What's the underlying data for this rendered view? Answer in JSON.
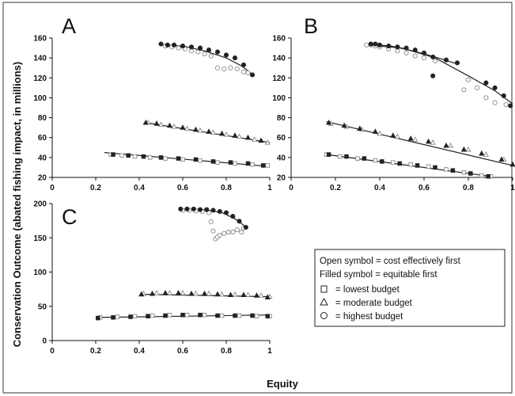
{
  "figure": {
    "ylabel": "Conservation Outcome (abated fishing impact, in millions)",
    "xlabel": "Equity"
  },
  "legend": {
    "line1": "Open symbol = cost effectively first",
    "line2": "Filled symbol = equitable first",
    "items": [
      {
        "symbol": "square",
        "label": "= lowest budget"
      },
      {
        "symbol": "triangle",
        "label": "= moderate budget"
      },
      {
        "symbol": "circle",
        "label": "= highest budget"
      }
    ]
  },
  "chart_data": [
    {
      "panel": "A",
      "type": "scatter",
      "xlim": [
        0,
        1
      ],
      "ylim": [
        20,
        160
      ],
      "xticks": [
        "0",
        "0.2",
        "0.4",
        "0.6",
        "0.8",
        "1"
      ],
      "yticks": [
        "20",
        "40",
        "60",
        "80",
        "100",
        "120",
        "140",
        "160"
      ],
      "series": [
        {
          "marker": "square",
          "fill": "open",
          "x": [
            0.27,
            0.32,
            0.38,
            0.45,
            0.52,
            0.6,
            0.68,
            0.76,
            0.84,
            0.92,
            0.99
          ],
          "y": [
            43,
            42,
            41,
            40,
            39,
            38,
            37,
            35,
            34,
            33,
            32
          ]
        },
        {
          "marker": "square",
          "fill": "filled",
          "x": [
            0.28,
            0.35,
            0.42,
            0.5,
            0.58,
            0.66,
            0.74,
            0.82,
            0.9,
            0.97
          ],
          "y": [
            43,
            42,
            41,
            40,
            39,
            38,
            36,
            35,
            34,
            32
          ]
        },
        {
          "marker": "triangle",
          "fill": "open",
          "x": [
            0.44,
            0.5,
            0.56,
            0.62,
            0.68,
            0.74,
            0.8,
            0.86,
            0.93,
            0.99
          ],
          "y": [
            75,
            73,
            71,
            69,
            67,
            65,
            63,
            61,
            58,
            55
          ]
        },
        {
          "marker": "triangle",
          "fill": "filled",
          "x": [
            0.43,
            0.48,
            0.54,
            0.6,
            0.66,
            0.72,
            0.78,
            0.84,
            0.9,
            0.96
          ],
          "y": [
            75,
            74,
            72,
            70,
            68,
            66,
            64,
            62,
            60,
            57
          ]
        },
        {
          "marker": "circle",
          "fill": "open",
          "x": [
            0.52,
            0.55,
            0.58,
            0.61,
            0.64,
            0.67,
            0.7,
            0.73,
            0.76,
            0.79,
            0.82,
            0.85,
            0.88,
            0.9
          ],
          "y": [
            152,
            151,
            150,
            149,
            147,
            146,
            144,
            142,
            130,
            129,
            130,
            129,
            126,
            125
          ]
        },
        {
          "marker": "circle",
          "fill": "filled",
          "x": [
            0.5,
            0.53,
            0.56,
            0.6,
            0.64,
            0.68,
            0.72,
            0.76,
            0.8,
            0.84,
            0.88,
            0.92
          ],
          "y": [
            154,
            153,
            153,
            152,
            151,
            150,
            148,
            146,
            143,
            140,
            133,
            123
          ]
        }
      ],
      "trendlines": [
        {
          "x": [
            0.24,
            1.0
          ],
          "y": [
            45,
            31
          ]
        },
        {
          "x": [
            0.43,
            1.0
          ],
          "y": [
            75,
            55
          ]
        },
        {
          "x": [
            0.5,
            0.6,
            0.7,
            0.8,
            0.87,
            0.93
          ],
          "y": [
            153,
            152,
            147,
            140,
            132,
            122
          ]
        }
      ]
    },
    {
      "panel": "B",
      "type": "scatter",
      "xlim": [
        0,
        1
      ],
      "ylim": [
        20,
        160
      ],
      "xticks": [
        "0",
        "0.2",
        "0.4",
        "0.6",
        "0.8",
        "1"
      ],
      "yticks": [
        "20",
        "40",
        "60",
        "80",
        "100",
        "120",
        "140",
        "160"
      ],
      "series": [
        {
          "marker": "square",
          "fill": "open",
          "x": [
            0.16,
            0.22,
            0.3,
            0.38,
            0.46,
            0.54,
            0.62,
            0.7,
            0.78,
            0.86,
            0.9
          ],
          "y": [
            43,
            41,
            39,
            37,
            35,
            33,
            31,
            28,
            25,
            22,
            21
          ]
        },
        {
          "marker": "square",
          "fill": "filled",
          "x": [
            0.17,
            0.25,
            0.33,
            0.41,
            0.49,
            0.57,
            0.65,
            0.73,
            0.81,
            0.89
          ],
          "y": [
            43,
            41,
            39,
            36,
            34,
            32,
            30,
            27,
            24,
            21
          ]
        },
        {
          "marker": "triangle",
          "fill": "open",
          "x": [
            0.18,
            0.25,
            0.32,
            0.4,
            0.48,
            0.56,
            0.64,
            0.72,
            0.8,
            0.88,
            0.96
          ],
          "y": [
            74,
            71,
            68,
            64,
            61,
            58,
            55,
            52,
            48,
            43,
            38
          ]
        },
        {
          "marker": "triangle",
          "fill": "filled",
          "x": [
            0.17,
            0.24,
            0.31,
            0.38,
            0.46,
            0.54,
            0.62,
            0.7,
            0.78,
            0.86,
            0.95,
            1.0
          ],
          "y": [
            75,
            72,
            69,
            66,
            62,
            59,
            56,
            52,
            48,
            44,
            38,
            33
          ]
        },
        {
          "marker": "circle",
          "fill": "open",
          "x": [
            0.34,
            0.36,
            0.38,
            0.4,
            0.44,
            0.48,
            0.52,
            0.56,
            0.6,
            0.65,
            0.78,
            0.8,
            0.84,
            0.88,
            0.92,
            0.97
          ],
          "y": [
            153,
            153,
            152,
            151,
            149,
            147,
            145,
            142,
            140,
            137,
            108,
            118,
            110,
            100,
            95,
            93
          ]
        },
        {
          "marker": "circle",
          "fill": "filled",
          "x": [
            0.36,
            0.38,
            0.4,
            0.44,
            0.48,
            0.52,
            0.56,
            0.6,
            0.64,
            0.7,
            0.75,
            0.64,
            0.88,
            0.92,
            0.96,
            0.99
          ],
          "y": [
            154,
            154,
            153,
            152,
            151,
            150,
            148,
            145,
            141,
            138,
            135,
            122,
            115,
            110,
            102,
            92
          ]
        }
      ],
      "trendlines": [
        {
          "x": [
            0.16,
            0.9
          ],
          "y": [
            43,
            21
          ]
        },
        {
          "x": [
            0.16,
            1.0
          ],
          "y": [
            76,
            32
          ]
        },
        {
          "x": [
            0.34,
            0.45,
            0.55,
            0.65,
            0.75
          ],
          "y": [
            154,
            152,
            147,
            141,
            134
          ]
        },
        {
          "x": [
            0.34,
            0.5,
            0.65,
            0.8,
            0.92,
            1.0
          ],
          "y": [
            153,
            150,
            140,
            122,
            107,
            94
          ]
        }
      ]
    },
    {
      "panel": "C",
      "type": "scatter",
      "xlim": [
        0,
        1
      ],
      "ylim": [
        0,
        225
      ],
      "xticks": [
        "0",
        "0.2",
        "0.4",
        "0.6",
        "0.8",
        "1"
      ],
      "yticks": [
        "0",
        "50",
        "100",
        "150",
        "200"
      ],
      "series": [
        {
          "marker": "square",
          "fill": "open",
          "x": [
            0.22,
            0.3,
            0.38,
            0.46,
            0.54,
            0.62,
            0.7,
            0.78,
            0.86,
            0.94,
            1.0
          ],
          "y": [
            38,
            39,
            40,
            41,
            42,
            42,
            42,
            41,
            41,
            40,
            40
          ]
        },
        {
          "marker": "square",
          "fill": "filled",
          "x": [
            0.21,
            0.28,
            0.36,
            0.44,
            0.52,
            0.6,
            0.68,
            0.76,
            0.84,
            0.92,
            0.99
          ],
          "y": [
            37,
            38,
            39,
            40,
            41,
            42,
            42,
            41,
            41,
            41,
            40
          ]
        },
        {
          "marker": "triangle",
          "fill": "open",
          "x": [
            0.42,
            0.48,
            0.54,
            0.6,
            0.66,
            0.72,
            0.78,
            0.84,
            0.9,
            0.96,
            1.0
          ],
          "y": [
            77,
            78,
            78,
            78,
            77,
            77,
            76,
            76,
            75,
            74,
            72
          ]
        },
        {
          "marker": "triangle",
          "fill": "filled",
          "x": [
            0.41,
            0.46,
            0.52,
            0.58,
            0.64,
            0.7,
            0.76,
            0.82,
            0.88,
            0.94,
            0.99
          ],
          "y": [
            76,
            77,
            78,
            78,
            77,
            77,
            76,
            75,
            75,
            74,
            71
          ]
        },
        {
          "marker": "circle",
          "fill": "open",
          "x": [
            0.6,
            0.63,
            0.66,
            0.69,
            0.72,
            0.73,
            0.74,
            0.75,
            0.76,
            0.77,
            0.79,
            0.81,
            0.83,
            0.85,
            0.87,
            0.88
          ],
          "y": [
            214,
            214,
            213,
            212,
            210,
            195,
            180,
            167,
            170,
            173,
            176,
            178,
            178,
            182,
            178,
            185
          ]
        },
        {
          "marker": "circle",
          "fill": "filled",
          "x": [
            0.59,
            0.62,
            0.65,
            0.68,
            0.71,
            0.74,
            0.77,
            0.8,
            0.83,
            0.86,
            0.89
          ],
          "y": [
            216,
            216,
            216,
            215,
            215,
            214,
            212,
            210,
            204,
            196,
            186
          ]
        }
      ],
      "trendlines": [
        {
          "x": [
            0.21,
            1.0
          ],
          "y": [
            38,
            42
          ]
        },
        {
          "x": [
            0.41,
            1.0
          ],
          "y": [
            76,
            72
          ]
        },
        {
          "x": [
            0.59,
            0.7,
            0.78,
            0.84,
            0.9
          ],
          "y": [
            216,
            215,
            210,
            200,
            184
          ]
        }
      ]
    }
  ]
}
